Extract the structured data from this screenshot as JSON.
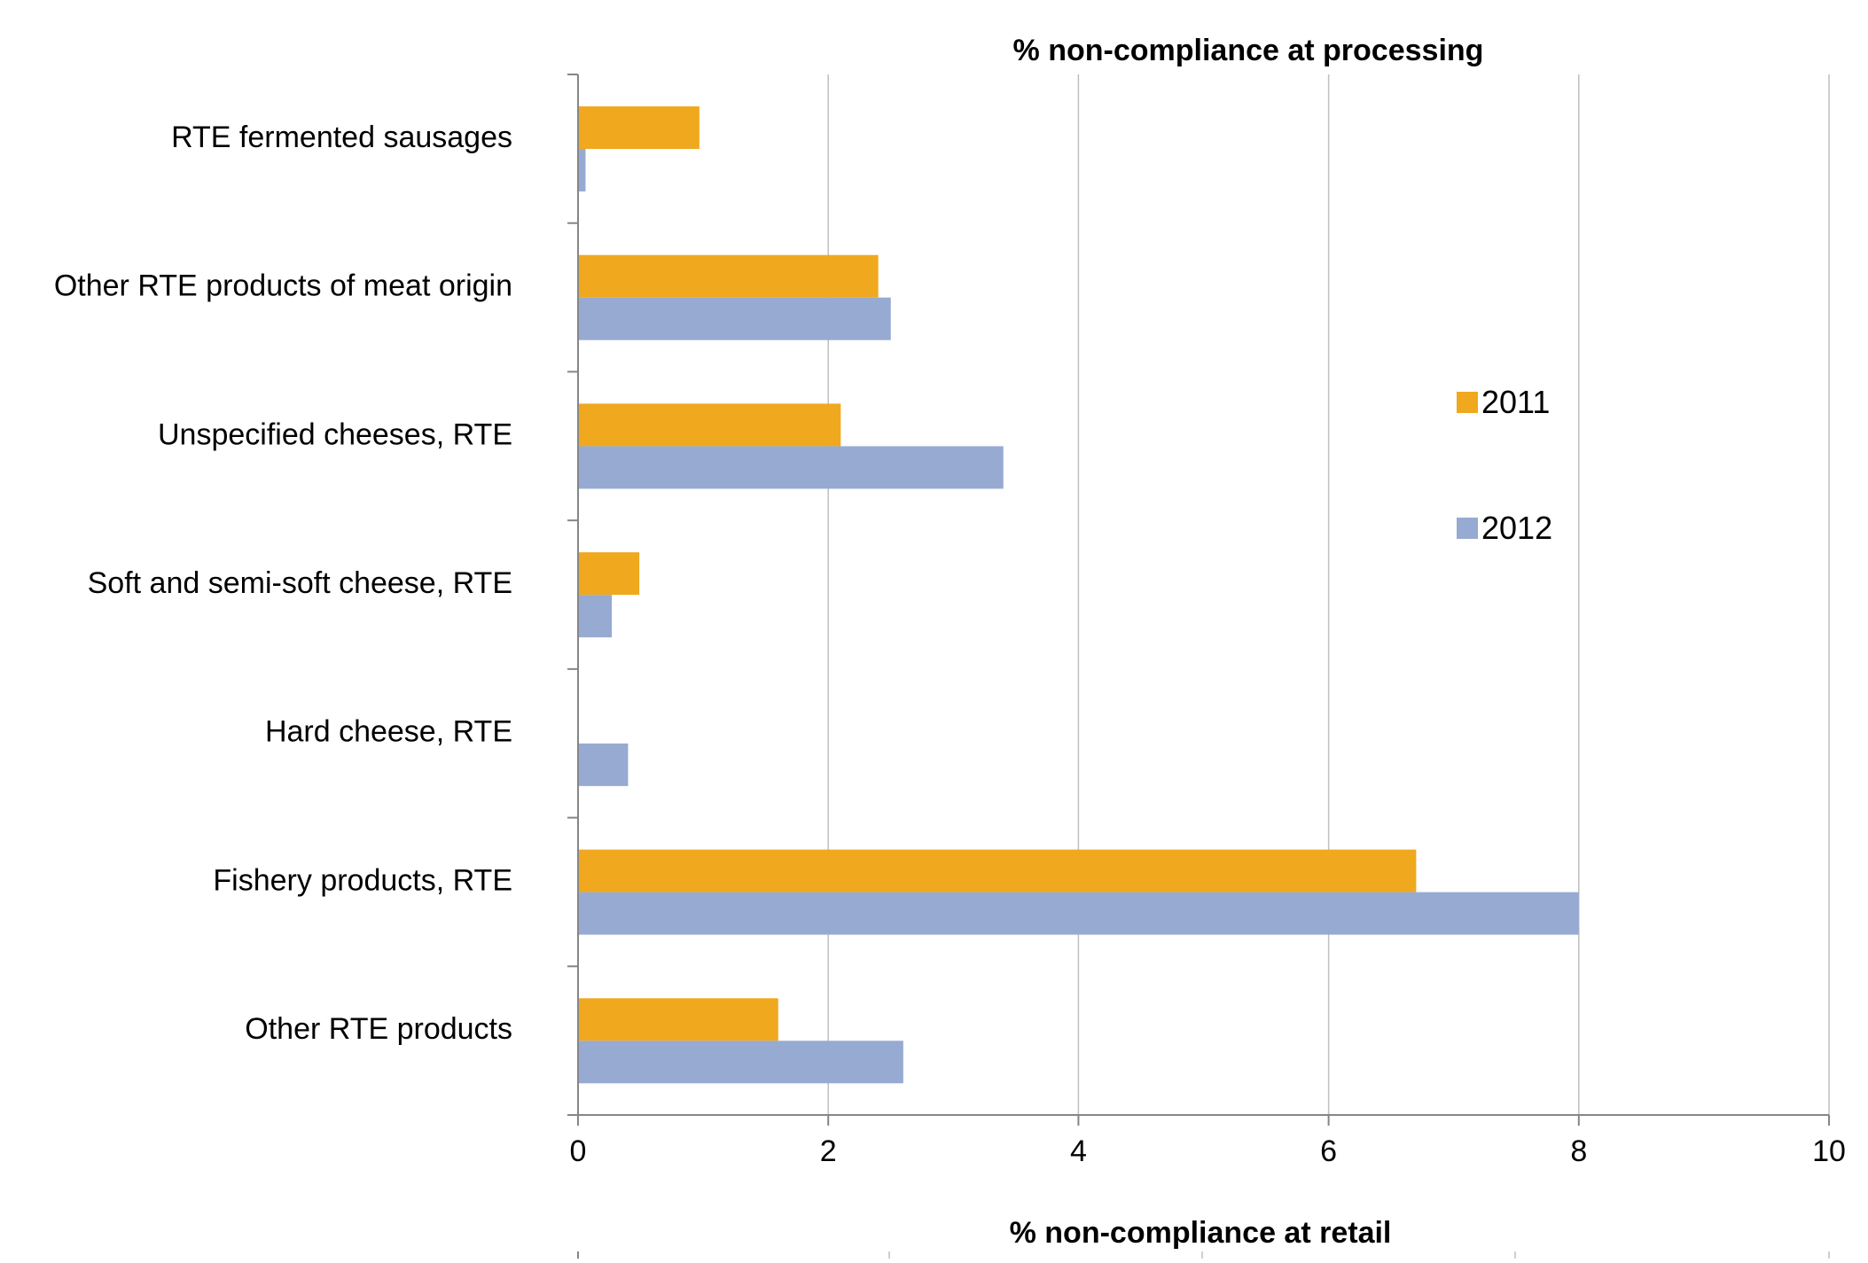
{
  "chart_data": [
    {
      "type": "bar",
      "orientation": "horizontal",
      "title": "% non-compliance at processing",
      "xlabel": "",
      "ylabel": "",
      "xlim": [
        0,
        10
      ],
      "x_ticks": [
        "0",
        "2",
        "4",
        "6",
        "8",
        "10"
      ],
      "grid": "vertical gridlines on",
      "legend_position": "right",
      "categories": [
        "RTE fermented sausages",
        "Other RTE  products of meat origin",
        "Unspecified cheeses, RTE",
        "Soft and semi-soft cheese, RTE",
        "Hard cheese, RTE",
        "Fishery products, RTE",
        "Other RTE  products"
      ],
      "series": [
        {
          "name": "2011",
          "color": "#F0A81E",
          "values": [
            0.97,
            2.4,
            2.1,
            0.49,
            null,
            6.7,
            1.6
          ]
        },
        {
          "name": "2012",
          "color": "#97AAD2",
          "values": [
            0.06,
            2.5,
            3.4,
            0.27,
            0.4,
            8.0,
            2.6
          ]
        }
      ]
    },
    {
      "type": "bar",
      "orientation": "horizontal",
      "title": "% non-compliance at retail",
      "categories": [],
      "series": []
    }
  ],
  "colors": {
    "axis": "#868686",
    "grid": "#BFBFBF",
    "bar_2011": "#F0A81E",
    "bar_2012": "#97AAD2"
  }
}
